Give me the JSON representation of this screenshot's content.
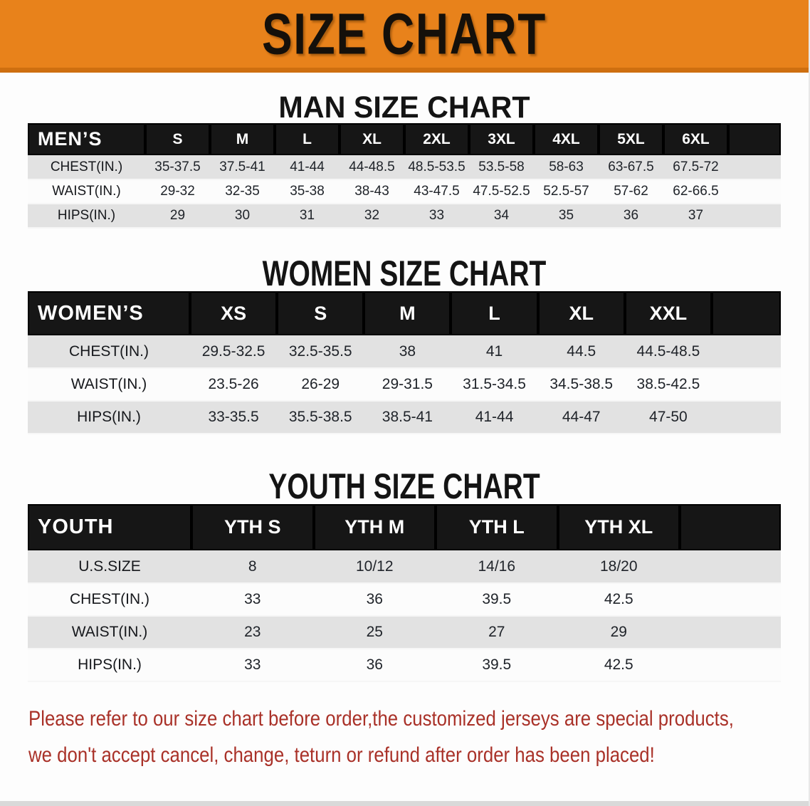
{
  "banner": {
    "title": "SIZE CHART"
  },
  "colors": {
    "banner_orange": "#E8821B",
    "banner_orange_dark": "#CE6F10",
    "header_black": "#161616",
    "row_gray": "#E2E2E2",
    "disclaimer_red": "#A93128"
  },
  "sections": {
    "men": {
      "heading": "MAN SIZE CHART",
      "table": {
        "corner_label": "MEN’S",
        "columns": [
          "S",
          "M",
          "L",
          "XL",
          "2XL",
          "3XL",
          "4XL",
          "5XL",
          "6XL"
        ],
        "rows": [
          {
            "label": "CHEST(IN.)",
            "values": [
              "35-37.5",
              "37.5-41",
              "41-44",
              "44-48.5",
              "48.5-53.5",
              "53.5-58",
              "58-63",
              "63-67.5",
              "67.5-72"
            ]
          },
          {
            "label": "WAIST(IN.)",
            "values": [
              "29-32",
              "32-35",
              "35-38",
              "38-43",
              "43-47.5",
              "47.5-52.5",
              "52.5-57",
              "57-62",
              "62-66.5"
            ]
          },
          {
            "label": "HIPS(IN.)",
            "values": [
              "29",
              "30",
              "31",
              "32",
              "33",
              "34",
              "35",
              "36",
              "37"
            ]
          }
        ]
      }
    },
    "women": {
      "heading": "WOMEN SIZE CHART",
      "table": {
        "corner_label": "WOMEN’S",
        "columns": [
          "XS",
          "S",
          "M",
          "L",
          "XL",
          "XXL"
        ],
        "rows": [
          {
            "label": "CHEST(IN.)",
            "values": [
              "29.5-32.5",
              "32.5-35.5",
              "38",
              "41",
              "44.5",
              "44.5-48.5"
            ]
          },
          {
            "label": "WAIST(IN.)",
            "values": [
              "23.5-26",
              "26-29",
              "29-31.5",
              "31.5-34.5",
              "34.5-38.5",
              "38.5-42.5"
            ]
          },
          {
            "label": "HIPS(IN.)",
            "values": [
              "33-35.5",
              "35.5-38.5",
              "38.5-41",
              "41-44",
              "44-47",
              "47-50"
            ]
          }
        ]
      }
    },
    "youth": {
      "heading": "YOUTH SIZE CHART",
      "table": {
        "corner_label": "YOUTH",
        "columns": [
          "YTH S",
          "YTH M",
          "YTH L",
          "YTH XL"
        ],
        "rows": [
          {
            "label": "U.S.SIZE",
            "values": [
              "8",
              "10/12",
              "14/16",
              "18/20"
            ]
          },
          {
            "label": "CHEST(IN.)",
            "values": [
              "33",
              "36",
              "39.5",
              "42.5"
            ]
          },
          {
            "label": "WAIST(IN.)",
            "values": [
              "23",
              "25",
              "27",
              "29"
            ]
          },
          {
            "label": "HIPS(IN.)",
            "values": [
              "33",
              "36",
              "39.5",
              "42.5"
            ]
          }
        ]
      }
    }
  },
  "disclaimer": {
    "line1": "Please refer to our size chart before order,the customized jerseys are special products,",
    "line2": "we don't accept cancel, change, teturn or refund after order has been placed!"
  }
}
